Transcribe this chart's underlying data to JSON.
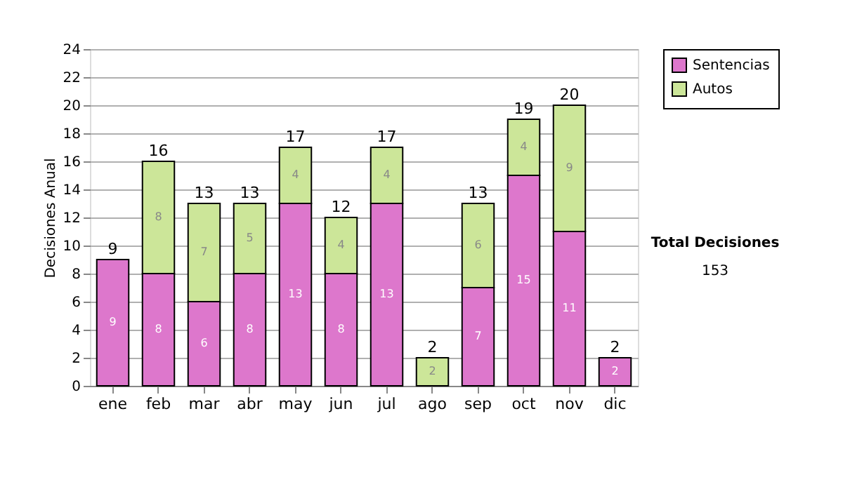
{
  "chart_data": {
    "type": "bar",
    "stacked": true,
    "ylabel": "Decisiones Anual",
    "categories": [
      "ene",
      "feb",
      "mar",
      "abr",
      "may",
      "jun",
      "jul",
      "ago",
      "sep",
      "oct",
      "nov",
      "dic"
    ],
    "series": [
      {
        "name": "Sentencias",
        "color": "#dd77cc",
        "values": [
          9,
          8,
          6,
          8,
          13,
          8,
          13,
          0,
          7,
          15,
          11,
          2
        ],
        "value_labels": [
          "9",
          "8",
          "6",
          "8",
          "13",
          "8",
          "13",
          null,
          "7",
          "15",
          "11",
          "2"
        ]
      },
      {
        "name": "Autos",
        "color": "#cce699",
        "values": [
          0,
          8,
          7,
          5,
          4,
          4,
          4,
          2,
          6,
          4,
          9,
          0
        ],
        "value_labels": [
          null,
          "8",
          "7",
          "5",
          "4",
          "4",
          "4",
          "2",
          "6",
          "4",
          "9",
          null
        ]
      }
    ],
    "totals": [
      "9",
      "16",
      "13",
      "13",
      "17",
      "12",
      "17",
      "2",
      "13",
      "19",
      "20",
      "2"
    ],
    "ylim": [
      0,
      24
    ],
    "yticks": [
      0,
      2,
      4,
      6,
      8,
      10,
      12,
      14,
      16,
      18,
      20,
      22,
      24
    ],
    "grid": "y",
    "legend": "right",
    "annotations": [
      "Total Decisiones",
      "153"
    ]
  }
}
